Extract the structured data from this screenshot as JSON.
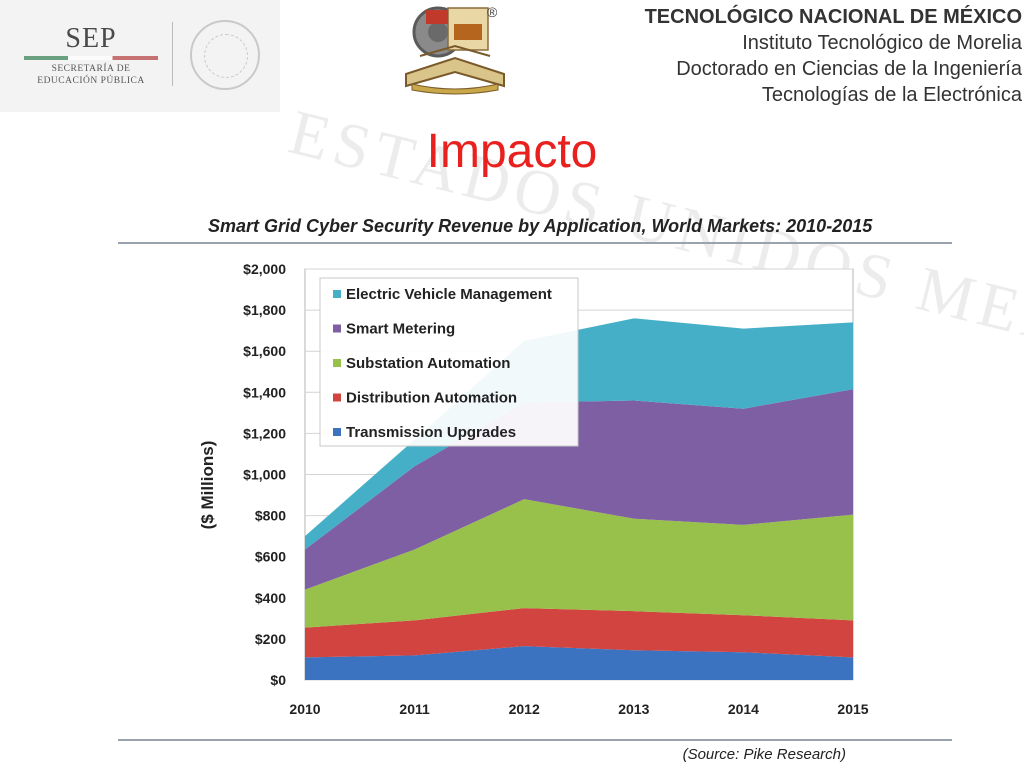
{
  "header": {
    "line1": "TECNOLÓGICO NACIONAL DE MÉXICO",
    "line2": "Instituto Tecnológico de Morelia",
    "line3": "Doctorado en Ciencias de la Ingeniería",
    "line4": "Tecnologías de la Electrónica"
  },
  "sep_logo": {
    "title": "SEP",
    "sub1": "SECRETARÍA DE",
    "sub2": "EDUCACIÓN PÚBLICA"
  },
  "itm_logo": {
    "registered_mark": "®"
  },
  "slide": {
    "title": "Impacto",
    "watermark": "ESTADOS UNIDOS MEXICANOS"
  },
  "colors": {
    "title": "#e8211f",
    "ev": "#45afc7",
    "metering": "#7e5fa3",
    "substation": "#98c14b",
    "distribution": "#d2443f",
    "transmission": "#3c73c0"
  },
  "chart_data": {
    "type": "area",
    "stacked": true,
    "title": "Smart Grid Cyber Security Revenue by Application, World Markets:  2010-2015",
    "xlabel": "",
    "ylabel": "($ Millions)",
    "x": [
      "2010",
      "2011",
      "2012",
      "2013",
      "2014",
      "2015"
    ],
    "ylim": [
      0,
      2000
    ],
    "yticks": [
      "$0",
      "$200",
      "$400",
      "$600",
      "$800",
      "$1,000",
      "$1,200",
      "$1,400",
      "$1,600",
      "$1,800",
      "$2,000"
    ],
    "grid": true,
    "legend_position": "top-left",
    "series": [
      {
        "name": "Transmission Upgrades",
        "color": "#3c73c0",
        "values": [
          110,
          120,
          165,
          145,
          135,
          110
        ]
      },
      {
        "name": "Distribution Automation",
        "color": "#d2443f",
        "values": [
          145,
          170,
          185,
          190,
          180,
          180
        ]
      },
      {
        "name": "Substation Automation",
        "color": "#98c14b",
        "values": [
          185,
          345,
          530,
          450,
          440,
          515
        ]
      },
      {
        "name": "Smart Metering",
        "color": "#7e5fa3",
        "values": [
          195,
          405,
          470,
          575,
          565,
          610
        ]
      },
      {
        "name": "Electric Vehicle Management",
        "color": "#45afc7",
        "values": [
          65,
          130,
          300,
          400,
          390,
          325
        ]
      }
    ],
    "legend_order": [
      "Electric Vehicle Management",
      "Smart Metering",
      "Substation Automation",
      "Distribution Automation",
      "Transmission Upgrades"
    ],
    "source": "(Source: Pike Research)"
  }
}
